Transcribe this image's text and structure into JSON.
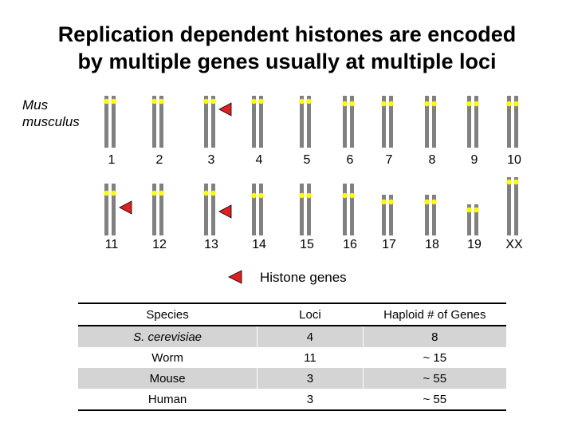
{
  "title_line1": "Replication dependent histones are encoded",
  "title_line2": "by multiple genes usually at multiple loci",
  "species_line1": "Mus",
  "species_line2": "musculus",
  "chromosomes": [
    {
      "label": "1",
      "histone": false
    },
    {
      "label": "2",
      "histone": false
    },
    {
      "label": "3",
      "histone": true
    },
    {
      "label": "4",
      "histone": false
    },
    {
      "label": "5",
      "histone": false
    },
    {
      "label": "6",
      "histone": false
    },
    {
      "label": "7",
      "histone": false
    },
    {
      "label": "8",
      "histone": false
    },
    {
      "label": "9",
      "histone": false
    },
    {
      "label": "10",
      "histone": false
    },
    {
      "label": "11",
      "histone": true
    },
    {
      "label": "12",
      "histone": false
    },
    {
      "label": "13",
      "histone": true
    },
    {
      "label": "14",
      "histone": false
    },
    {
      "label": "15",
      "histone": false
    },
    {
      "label": "16",
      "histone": false
    },
    {
      "label": "17",
      "histone": false
    },
    {
      "label": "18",
      "histone": false
    },
    {
      "label": "19",
      "histone": false
    },
    {
      "label": "XX",
      "histone": false
    }
  ],
  "legend": {
    "label": "Histone genes",
    "marker_color": "#e02020"
  },
  "colors": {
    "chromosome": "#808080",
    "centromere": "#ffff00"
  },
  "table": {
    "headers": {
      "species": "Species",
      "loci": "Loci",
      "genes": "Haploid # of Genes"
    },
    "rows": [
      {
        "species": "S. cerevisiae",
        "loci": "4",
        "genes": "8"
      },
      {
        "species": "Worm",
        "loci": "11",
        "genes": "~ 15"
      },
      {
        "species": "Mouse",
        "loci": "3",
        "genes": "~ 55"
      },
      {
        "species": "Human",
        "loci": "3",
        "genes": "~ 55"
      }
    ]
  }
}
